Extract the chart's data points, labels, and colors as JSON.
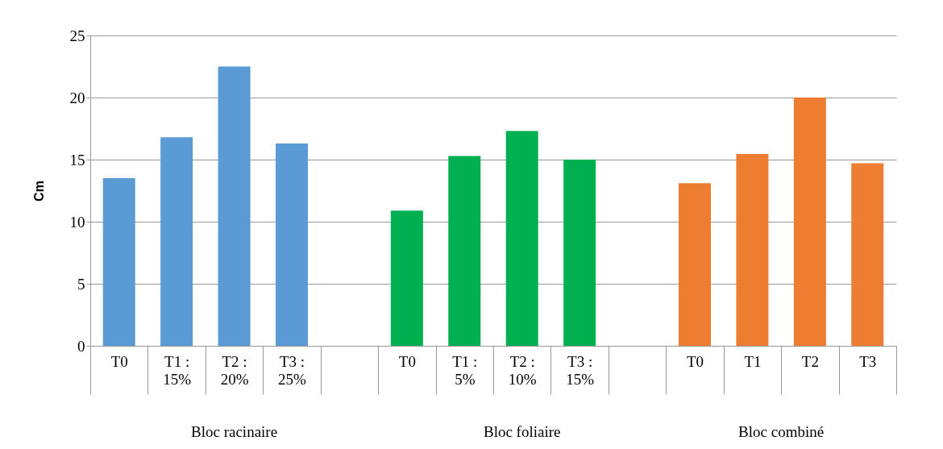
{
  "chart_data": {
    "type": "bar",
    "ylabel": "Cm",
    "categories": [
      "T0",
      "T1 :\n15%",
      "T2 :\n20%",
      "T3 :\n25%",
      null,
      "T0",
      "T1 :\n5%",
      "T2 :\n10%",
      "T3 :\n15%",
      null,
      "T0",
      "T1",
      "T2",
      "T3"
    ],
    "values": [
      13.5,
      16.8,
      22.5,
      16.3,
      null,
      10.9,
      15.3,
      17.3,
      15.0,
      null,
      13.1,
      15.45,
      20.0,
      14.7
    ],
    "colors": [
      "#5b9bd5",
      "#5b9bd5",
      "#5b9bd5",
      "#5b9bd5",
      "#ffffff",
      "#00b050",
      "#00b050",
      "#00b050",
      "#00b050",
      "#ffffff",
      "#ed7d31",
      "#ed7d31",
      "#ed7d31",
      "#ed7d31"
    ],
    "ylim": [
      0,
      25
    ],
    "yticks": [
      0,
      5,
      10,
      15,
      20,
      25
    ],
    "grid": "y",
    "annotations": [
      "Bloc racinaire",
      "Bloc foliaire",
      "Bloc combiné"
    ]
  }
}
